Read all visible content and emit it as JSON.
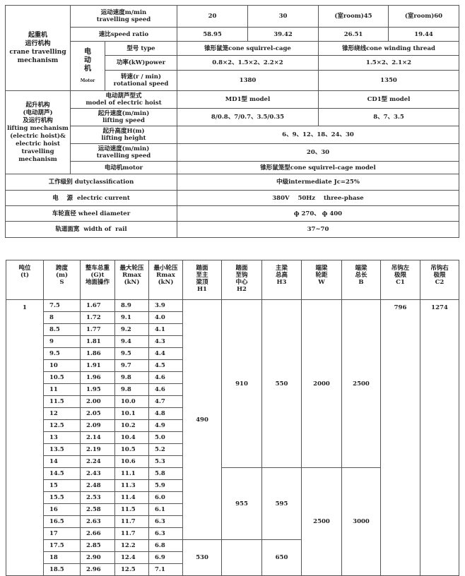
{
  "spec": {
    "crane_group": "起重机\n运行机构\ncrane travelling\nmechanism",
    "travel_speed_label": "运动速度m/min\ntravelling speed",
    "travel_speeds": [
      "20",
      "30",
      "(室room)45",
      "(室room)60"
    ],
    "ratio_label": "速比speed ratio",
    "ratios": [
      "58.95",
      "39.42",
      "26.51",
      "19.44"
    ],
    "motor_cn": "电\n动\n机",
    "motor_en": "Motor",
    "type_label": "型号 type",
    "type_a": "锥形鼠笼cone squirrel-cage",
    "type_b": "锥形绕线cone winding thread",
    "power_label": "功率(kW)power",
    "power_a": "0.8×2、1.5×2、2.2×2",
    "power_b": "1.5×2、2.1×2",
    "rot_label": "转速(r / min)\nrotational speed",
    "rot_a": "1380",
    "rot_b": "1350",
    "hoist_group": "起升机构\n(电动葫芦)\n及运行机构\nlifting mechanism\n(electric hoist)&\nelectric hoist\ntravelling\nmechanism",
    "hoist_model_label": "电动葫芦型式\nmodel of electric hoist",
    "hoist_model_a": "MD1型 model",
    "hoist_model_b": "CD1型 model",
    "lift_speed_label": "起升速度(m/min)\nlifting speed",
    "lift_speed_a": "8/0.8、7/0.7、3.5/0.35",
    "lift_speed_b": "8、7、3.5",
    "lift_height_label": "起升高度H(m)\nlifting height",
    "lift_height": "6、9、12、18、24、30",
    "hoist_travel_label": "运动速度(m/min)\ntravelling speed",
    "hoist_travel": "20、30",
    "hoist_motor_label": "电动机motor",
    "hoist_motor": "锥形鼠笼型cone squirrel-cage model",
    "duty_label": "工作级别 dutyclassification",
    "duty": "中级intermediate  Jc=25%",
    "current_label": "电    源  electric current",
    "current": "380V    50Hz    three-phase",
    "wheel_label": "车轮直径 wheel diameter",
    "wheel": "ф 270、 ф 400",
    "rail_label": "轨道面宽  width of  rail",
    "rail": "37~70"
  },
  "dims": {
    "headers": [
      "吨位\n(t)",
      "跨度\n(m)\nS",
      "整车总重\n(G)t\n地面操作",
      "最大轮压\nRmax\n(kN)",
      "最小轮压\nRmax\n(kN)",
      "踏面\n至主\n梁顶\nH1",
      "踏面\n至钩\n中心\nH2",
      "主梁\n总高\nH3",
      "端梁\n轮距\nW",
      "端梁\n总长\nB",
      "吊钩左\n极限\nC1",
      "吊钩右\n极限\nC2"
    ],
    "tonnage": "1",
    "rows": [
      [
        "7.5",
        "1.67",
        "8.9",
        "3.9"
      ],
      [
        "8",
        "1.72",
        "9.1",
        "4.0"
      ],
      [
        "8.5",
        "1.77",
        "9.2",
        "4.1"
      ],
      [
        "9",
        "1.81",
        "9.4",
        "4.3"
      ],
      [
        "9.5",
        "1.86",
        "9.5",
        "4.4"
      ],
      [
        "10",
        "1.91",
        "9.7",
        "4.5"
      ],
      [
        "10.5",
        "1.96",
        "9.8",
        "4.6"
      ],
      [
        "11",
        "1.95",
        "9.8",
        "4.6"
      ],
      [
        "11.5",
        "2.00",
        "10.0",
        "4.7"
      ],
      [
        "12",
        "2.05",
        "10.1",
        "4.8"
      ],
      [
        "12.5",
        "2.09",
        "10.2",
        "4.9"
      ],
      [
        "13",
        "2.14",
        "10.4",
        "5.0"
      ],
      [
        "13.5",
        "2.19",
        "10.5",
        "5.2"
      ],
      [
        "14",
        "2.24",
        "10.6",
        "5.3"
      ],
      [
        "14.5",
        "2.43",
        "11.1",
        "5.8"
      ],
      [
        "15",
        "2.48",
        "11.3",
        "5.9"
      ],
      [
        "15.5",
        "2.53",
        "11.4",
        "6.0"
      ],
      [
        "16",
        "2.58",
        "11.5",
        "6.1"
      ],
      [
        "16.5",
        "2.63",
        "11.7",
        "6.3"
      ],
      [
        "17",
        "2.66",
        "11.7",
        "6.3"
      ],
      [
        "17.5",
        "2.85",
        "12.2",
        "6.8"
      ],
      [
        "18",
        "2.90",
        "12.4",
        "6.9"
      ],
      [
        "18.5",
        "2.96",
        "12.5",
        "7.1"
      ]
    ],
    "merged": {
      "H1": [
        {
          "value": "490",
          "span": 20
        },
        {
          "value": "530",
          "span": 3
        }
      ],
      "H2": [
        {
          "value": "910",
          "span": 14
        },
        {
          "value": "955",
          "span": 6
        },
        {
          "value": "",
          "span": 3
        }
      ],
      "H3": [
        {
          "value": "550",
          "span": 14
        },
        {
          "value": "595",
          "span": 6
        },
        {
          "value": "650",
          "span": 3
        }
      ],
      "W": [
        {
          "value": "2000",
          "span": 14
        },
        {
          "value": "2500",
          "span": 9
        }
      ],
      "B": [
        {
          "value": "2500",
          "span": 14
        },
        {
          "value": "3000",
          "span": 9
        }
      ],
      "C1": [
        {
          "value": "796",
          "span": 23
        }
      ],
      "C2": [
        {
          "value": "1274",
          "span": 23
        }
      ]
    }
  }
}
